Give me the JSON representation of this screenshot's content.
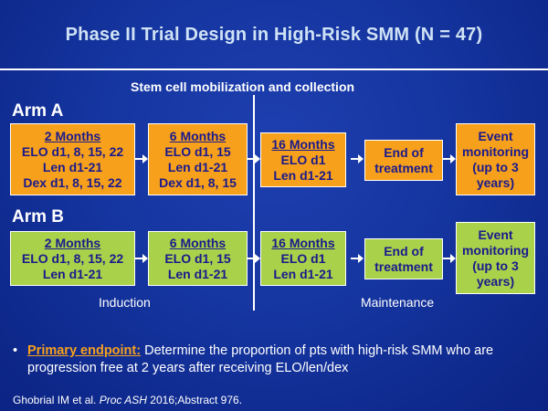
{
  "title": "Phase II Trial Design in High-Risk SMM (N = 47)",
  "stem_cell_label": "Stem cell mobilization and collection",
  "arm_a": {
    "label": "Arm A",
    "box1": {
      "heading": "2 Months",
      "lines": [
        "ELO d1, 8, 15, 22",
        "Len d1-21",
        "Dex d1, 8, 15, 22"
      ]
    },
    "box2": {
      "heading": "6 Months",
      "lines": [
        "ELO d1, 15",
        "Len d1-21",
        "Dex d1, 8, 15"
      ]
    },
    "box3": {
      "heading": "16 Months",
      "lines": [
        "ELO d1",
        "Len d1-21"
      ]
    },
    "end": {
      "lines": [
        "End of",
        "treatment"
      ]
    },
    "event": {
      "lines": [
        "Event",
        "monitoring",
        "(up to 3",
        "years)"
      ]
    }
  },
  "arm_b": {
    "label": "Arm B",
    "box1": {
      "heading": "2 Months",
      "lines": [
        "ELO d1, 8, 15, 22",
        "Len d1-21"
      ]
    },
    "box2": {
      "heading": "6 Months",
      "lines": [
        "ELO d1, 15",
        "Len d1-21"
      ]
    },
    "box3": {
      "heading": "16 Months",
      "lines": [
        "ELO d1",
        "Len d1-21"
      ]
    },
    "end": {
      "lines": [
        "End of",
        "treatment"
      ]
    },
    "event": {
      "lines": [
        "Event",
        "monitoring",
        "(up to 3",
        "years)"
      ]
    }
  },
  "phases": {
    "induction": "Induction",
    "maintenance": "Maintenance"
  },
  "bullet": {
    "marker": "•",
    "lead": "Primary endpoint:",
    "text": " Determine the proportion of pts with high-risk SMM who are progression free at 2 years after receiving ELO/len/dex"
  },
  "citation": {
    "pre": "Ghobrial IM et al. ",
    "journal": "Proc ASH",
    "post": " 2016;Abstract 976."
  },
  "colors": {
    "orange": "#f7a01c",
    "green": "#a9d14a",
    "box_text": "#1a1a8c",
    "title": "#cfe2f5",
    "background": "#1535a0"
  }
}
